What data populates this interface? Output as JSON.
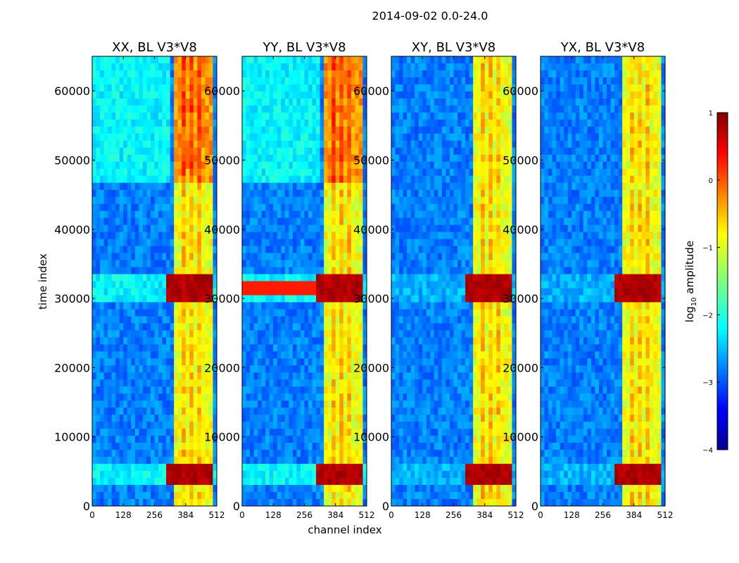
{
  "figure": {
    "suptitle": "2014-09-02 0.0-24.0",
    "xlabel": "channel index",
    "ylabel": "time index"
  },
  "chart_data": {
    "type": "heatmap",
    "title": "2014-09-02 0.0-24.0",
    "xlabel": "channel index",
    "ylabel": "time index",
    "xlim": [
      0,
      512
    ],
    "ylim": [
      0,
      65000
    ],
    "xticks": [
      0,
      128,
      256,
      384,
      512
    ],
    "yticks": [
      0,
      10000,
      20000,
      30000,
      40000,
      50000,
      60000
    ],
    "colormap": "jet",
    "colorbar": {
      "label_main": "log",
      "label_sub": "10",
      "label_rest": " amplitude",
      "range": [
        -4,
        1
      ],
      "ticks": [
        "1",
        "0",
        "−1",
        "−2",
        "−3",
        "−4"
      ],
      "tick_values": [
        1,
        0,
        -1,
        -2,
        -3,
        -4
      ]
    },
    "panels": [
      {
        "title": "XX, BL V3*V8",
        "pol": "XX"
      },
      {
        "title": "YY, BL V3*V8",
        "pol": "YY"
      },
      {
        "title": "XY, BL V3*V8",
        "pol": "XY"
      },
      {
        "title": "YX, BL V3*V8",
        "pol": "YX"
      }
    ],
    "features": {
      "band_channels": [
        330,
        500
      ],
      "strong_channels": [
        335,
        375,
        410,
        445,
        480
      ],
      "rfi_time_ranges": [
        [
          29500,
          34000
        ],
        [
          3500,
          6000
        ]
      ]
    }
  }
}
